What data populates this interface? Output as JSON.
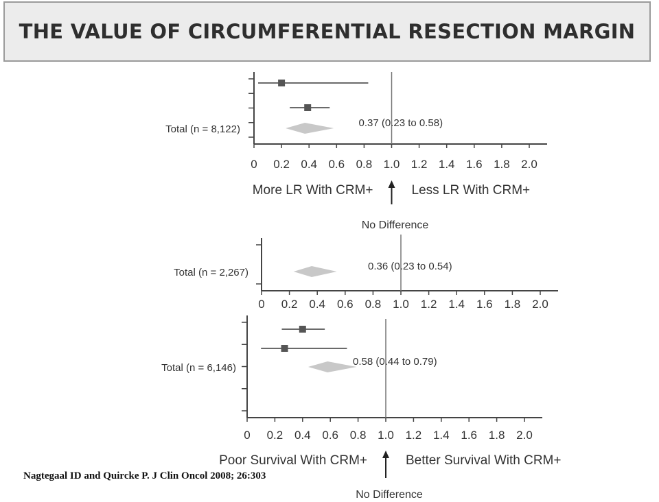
{
  "title": "THE VALUE OF  CIRCUMFERENTIAL RESECTION MARGIN",
  "citation": "Nagtegaal ID and Quircke P. J Clin Oncol 2008; 26:303",
  "colors": {
    "marker": "#555555",
    "diamond": "#c8c8c8",
    "axis": "#444444",
    "text": "#333333"
  },
  "chart_data": [
    {
      "type": "forest",
      "xlim": [
        0,
        2.0
      ],
      "reference_line": 1.0,
      "x_ticks": [
        "0",
        "0.2",
        "0.4",
        "0.6",
        "0.8",
        "1.0",
        "1.2",
        "1.4",
        "1.6",
        "1.8",
        "2.0"
      ],
      "studies": [
        {
          "estimate": 0.2,
          "ci": [
            0.03,
            0.83
          ]
        },
        {
          "estimate": 0.39,
          "ci": [
            0.26,
            0.55
          ]
        }
      ],
      "total": {
        "label": "Total (n = 8,122)",
        "estimate": 0.37,
        "ci": [
          0.23,
          0.58
        ],
        "text": "0.37 (0.23 to 0.58)"
      },
      "left_label": "More LR With CRM+",
      "right_label": "Less LR With CRM+",
      "arrow_label": "No Difference"
    },
    {
      "type": "forest",
      "xlim": [
        0,
        2.0
      ],
      "reference_line": 1.0,
      "x_ticks": [
        "0",
        "0.2",
        "0.4",
        "0.6",
        "0.8",
        "1.0",
        "1.2",
        "1.4",
        "1.6",
        "1.8",
        "2.0"
      ],
      "studies": [],
      "total": {
        "label": "Total (n = 2,267)",
        "estimate": 0.36,
        "ci": [
          0.23,
          0.54
        ],
        "text": "0.36 (0.23 to 0.54)"
      }
    },
    {
      "type": "forest",
      "xlim": [
        0,
        2.0
      ],
      "reference_line": 1.0,
      "x_ticks": [
        "0",
        "0.2",
        "0.4",
        "0.6",
        "0.8",
        "1.0",
        "1.2",
        "1.4",
        "1.6",
        "1.8",
        "2.0"
      ],
      "studies": [
        {
          "estimate": 0.4,
          "ci": [
            0.25,
            0.56
          ]
        },
        {
          "estimate": 0.27,
          "ci": [
            0.1,
            0.72
          ]
        }
      ],
      "total": {
        "label": "Total (n = 6,146)",
        "estimate": 0.58,
        "ci": [
          0.44,
          0.79
        ],
        "text": "0.58 (0.44 to 0.79)"
      },
      "left_label": "Poor Survival With CRM+",
      "right_label": "Better Survival With CRM+",
      "arrow_label": "No Difference"
    }
  ]
}
